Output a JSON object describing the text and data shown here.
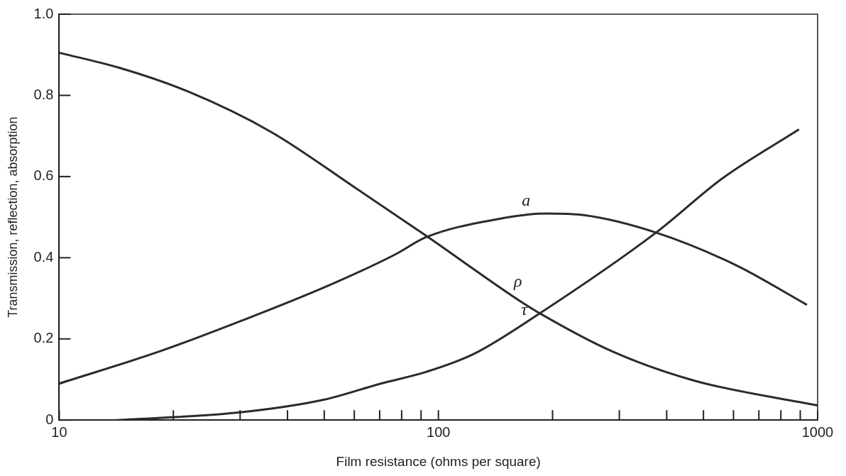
{
  "chart_data": {
    "type": "line",
    "xlabel": "Film resistance (ohms per square)",
    "ylabel": "Transmission, reflection, absorption",
    "log": "x",
    "xlim": [
      10,
      1000
    ],
    "ylim": [
      0,
      1
    ],
    "xticks": [
      10,
      {
        "value": 20,
        "label": null
      },
      {
        "value": 30,
        "label": null
      },
      {
        "value": 40,
        "label": null
      },
      {
        "value": 50,
        "label": null
      },
      {
        "value": 60,
        "label": null
      },
      {
        "value": 70,
        "label": null
      },
      {
        "value": 80,
        "label": null
      },
      {
        "value": 90,
        "label": null
      },
      100,
      {
        "value": 200,
        "label": null
      },
      {
        "value": 300,
        "label": null
      },
      {
        "value": 400,
        "label": null
      },
      {
        "value": 500,
        "label": null
      },
      {
        "value": 600,
        "label": null
      },
      {
        "value": 700,
        "label": null
      },
      {
        "value": 800,
        "label": null
      },
      {
        "value": 900,
        "label": null
      },
      1000
    ],
    "yticks": [
      0,
      0.2,
      0.4,
      0.6,
      0.8,
      {
        "value": 1,
        "label": "1.0"
      }
    ],
    "grid": false,
    "legend": false,
    "marker": "none",
    "line_style": "solid",
    "series": [
      {
        "color": "#2b2b2b",
        "x": [
          10,
          14.4,
          21.8,
          36.2,
          59.8,
          92.5,
          160,
          185,
          286,
          474,
          1000
        ],
        "values": [
          0.905,
          0.868,
          0.81,
          0.71,
          0.575,
          0.455,
          0.3,
          0.263,
          0.17,
          0.097,
          0.036
        ]
      },
      {
        "color": "#2b2b2b",
        "x": [
          10,
          18.5,
          30.5,
          50.6,
          76.9,
          92.5,
          143,
          193,
          242,
          375,
          608,
          933
        ],
        "values": [
          0.09,
          0.17,
          0.246,
          0.329,
          0.408,
          0.45,
          0.495,
          0.509,
          0.505,
          0.462,
          0.382,
          0.285
        ]
      },
      {
        "color": "#2b2b2b",
        "x": [
          14.2,
          30,
          49.8,
          70.5,
          93,
          124,
          185,
          375,
          560,
          889
        ],
        "values": [
          0,
          0.019,
          0.05,
          0.09,
          0.119,
          0.163,
          0.263,
          0.462,
          0.595,
          0.715
        ]
      }
    ],
    "annotations": [
      {
        "text": "a",
        "x": 166,
        "y": 0.505
      },
      {
        "text": "ρ",
        "x": 158,
        "y": 0.305
      },
      {
        "text": "τ",
        "x": 164,
        "y": 0.235
      }
    ]
  }
}
